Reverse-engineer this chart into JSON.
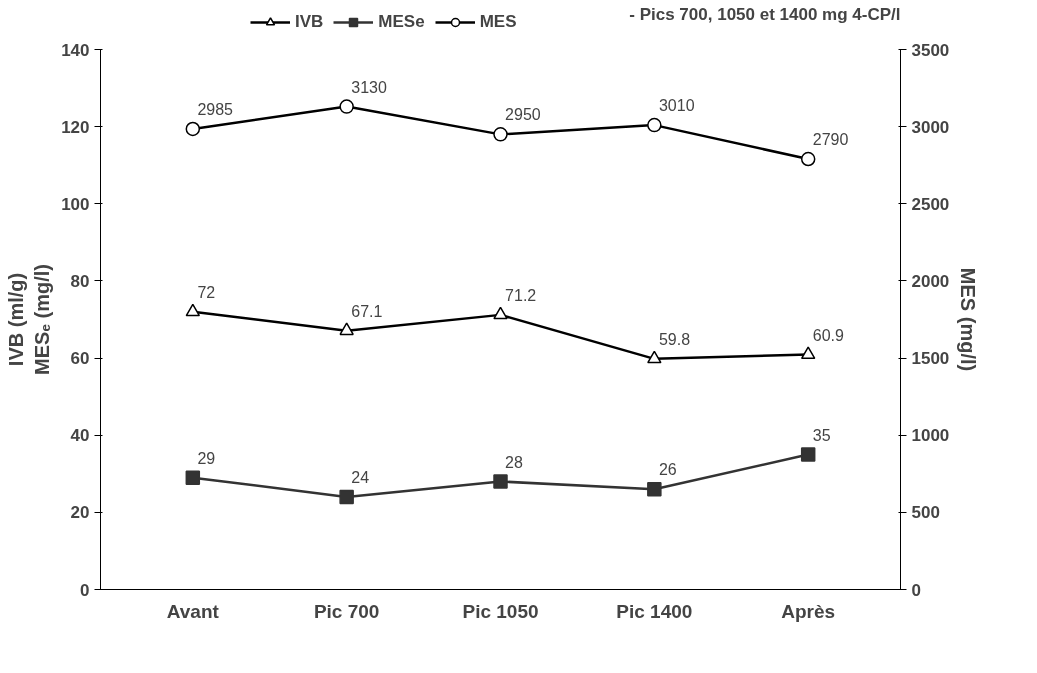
{
  "chart_data": {
    "type": "line",
    "title": "- Pics 700, 1050 et 1400 mg 4-CP/l",
    "ylabel": "IVB (ml/g)\nMESₑ (mg/l)",
    "y2label": "MES (mg/l)",
    "categories": [
      "Avant",
      "Pic 700",
      "Pic 1050",
      "Pic 1400",
      "Après"
    ],
    "series": [
      {
        "name": "IVB",
        "color": "#000000",
        "marker": "triangle",
        "values": [
          72,
          67.1,
          71.2,
          59.8,
          60.9
        ]
      },
      {
        "name": "MESe",
        "color": "#333333",
        "marker": "square",
        "values": [
          29,
          24,
          28,
          26,
          35
        ]
      },
      {
        "name": "MES",
        "color": "#000000",
        "marker": "circle",
        "axis": "y2",
        "values": [
          2985,
          3130,
          2950,
          3010,
          2790
        ]
      }
    ],
    "ylim": [
      0,
      140
    ],
    "yticks": [
      0,
      20,
      40,
      60,
      80,
      100,
      120,
      140
    ],
    "y2lim": [
      0,
      3500
    ],
    "y2ticks": [
      0,
      500,
      1000,
      1500,
      2000,
      2500,
      3000,
      3500
    ],
    "data_labels": true,
    "grid": false,
    "legend": "top"
  }
}
